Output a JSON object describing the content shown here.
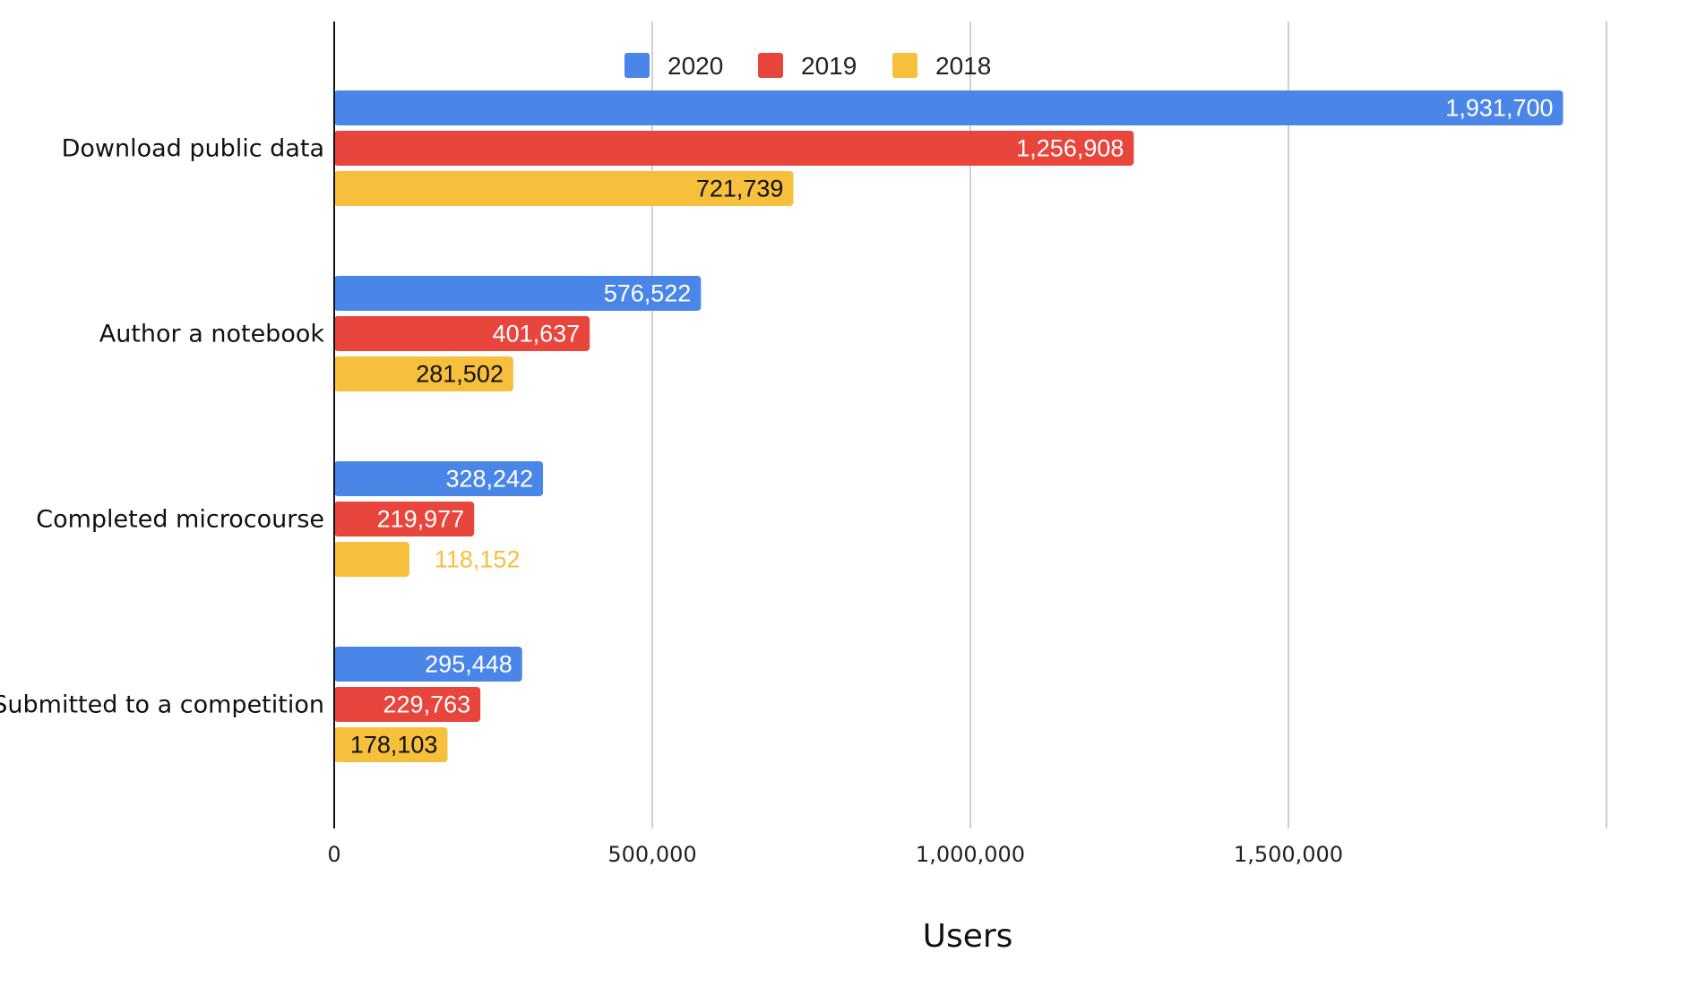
{
  "chart_data": {
    "type": "bar",
    "orientation": "horizontal",
    "categories": [
      "Download public data",
      "Author a notebook",
      "Completed microcourse",
      "Submitted to a competition"
    ],
    "series": [
      {
        "name": "2020",
        "color": "#4a86e8",
        "values": [
          1931700,
          576522,
          328242,
          295448
        ],
        "labels": [
          "1,931,700",
          "576,522",
          "328,242",
          "295,448"
        ]
      },
      {
        "name": "2019",
        "color": "#e8453c",
        "values": [
          1256908,
          401637,
          219977,
          229763
        ],
        "labels": [
          "1,256,908",
          "401,637",
          "219,977",
          "229,763"
        ]
      },
      {
        "name": "2018",
        "color": "#f6bf3c",
        "values": [
          721739,
          281502,
          118152,
          178103
        ],
        "labels": [
          "721,739",
          "281,502",
          "118,152",
          "178,103"
        ]
      }
    ],
    "xlabel": "Users",
    "xlim": [
      0,
      2000000
    ],
    "xticks": [
      0,
      500000,
      1000000,
      1500000,
      2000000
    ],
    "xtick_labels": [
      "0",
      "500,000",
      "1,000,000",
      "1,500,000",
      ""
    ],
    "grid": true,
    "legend": "top"
  }
}
